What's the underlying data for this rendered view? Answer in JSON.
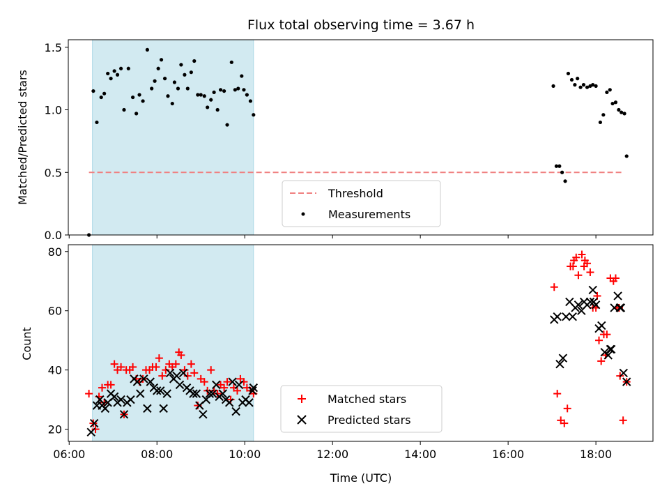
{
  "title": "Flux total observing time = 3.67 h",
  "colors": {
    "shade": "#add8e6",
    "threshold": "#f08080",
    "measurement": "#000000",
    "matched": "#ff0000",
    "predicted": "#000000"
  },
  "chart_data": [
    {
      "type": "scatter",
      "ylabel": "Matched/Predicted stars",
      "xlim": [
        5.98,
        19.3
      ],
      "ylim": [
        0.0,
        1.56
      ],
      "yticks": [
        0.0,
        0.5,
        1.0,
        1.5
      ],
      "ytick_labels": [
        "0.0",
        "0.5",
        "1.0",
        "1.5"
      ],
      "shaded_span": [
        6.53,
        10.2
      ],
      "legend": {
        "position": "lower-center",
        "entries": [
          "Threshold",
          "Measurements"
        ]
      },
      "threshold": {
        "name": "Threshold",
        "x": [
          6.45,
          18.6
        ],
        "y": 0.5
      },
      "series": [
        {
          "name": "Measurements",
          "x": [
            6.45,
            6.55,
            6.63,
            6.73,
            6.8,
            6.88,
            6.95,
            7.03,
            7.1,
            7.18,
            7.25,
            7.35,
            7.45,
            7.53,
            7.6,
            7.68,
            7.78,
            7.88,
            7.95,
            8.03,
            8.1,
            8.18,
            8.25,
            8.35,
            8.4,
            8.48,
            8.55,
            8.63,
            8.7,
            8.78,
            8.85,
            8.93,
            9.0,
            9.08,
            9.15,
            9.23,
            9.3,
            9.38,
            9.45,
            9.53,
            9.6,
            9.7,
            9.78,
            9.85,
            9.93,
            9.98,
            10.05,
            10.13,
            10.2,
            17.03,
            17.1,
            17.17,
            17.23,
            17.3,
            17.37,
            17.45,
            17.52,
            17.58,
            17.65,
            17.72,
            17.8,
            17.87,
            17.93,
            18.0,
            18.1,
            18.17,
            18.25,
            18.32,
            18.38,
            18.45,
            18.52,
            18.58,
            18.65,
            18.7
          ],
          "y": [
            0.0,
            1.15,
            0.9,
            1.1,
            1.13,
            1.29,
            1.25,
            1.31,
            1.28,
            1.33,
            1.0,
            1.33,
            1.1,
            0.97,
            1.12,
            1.07,
            1.48,
            1.17,
            1.23,
            1.33,
            1.4,
            1.25,
            1.11,
            1.05,
            1.22,
            1.17,
            1.36,
            1.28,
            1.17,
            1.3,
            1.39,
            1.12,
            1.12,
            1.11,
            1.02,
            1.08,
            1.14,
            1.0,
            1.16,
            1.15,
            0.88,
            1.38,
            1.16,
            1.17,
            1.27,
            1.16,
            1.12,
            1.07,
            0.96,
            1.19,
            0.55,
            0.55,
            0.5,
            0.43,
            1.29,
            1.24,
            1.2,
            1.25,
            1.18,
            1.2,
            1.18,
            1.19,
            1.2,
            1.19,
            0.9,
            0.96,
            1.14,
            1.16,
            1.05,
            1.06,
            1.0,
            0.98,
            0.97,
            0.63
          ]
        }
      ]
    },
    {
      "type": "scatter",
      "ylabel": "Count",
      "xlabel": "Time (UTC)",
      "xlim": [
        5.98,
        19.3
      ],
      "ylim": [
        15.9,
        82.3
      ],
      "yticks": [
        20,
        40,
        60,
        80
      ],
      "ytick_labels": [
        "20",
        "40",
        "60",
        "80"
      ],
      "xticks": [
        6,
        8,
        10,
        12,
        14,
        16,
        18
      ],
      "xtick_labels": [
        "06:00",
        "08:00",
        "10:00",
        "12:00",
        "14:00",
        "16:00",
        "18:00"
      ],
      "shaded_span": [
        6.53,
        10.2
      ],
      "legend": {
        "position": "lower-center",
        "entries": [
          "Matched stars",
          "Predicted stars"
        ]
      },
      "series": [
        {
          "name": "Matched stars",
          "marker": "plus",
          "x": [
            6.45,
            6.55,
            6.6,
            6.68,
            6.75,
            6.8,
            6.88,
            6.95,
            7.03,
            7.1,
            7.18,
            7.25,
            7.3,
            7.38,
            7.45,
            7.53,
            7.6,
            7.68,
            7.75,
            7.83,
            7.9,
            7.98,
            8.05,
            8.12,
            8.2,
            8.28,
            8.35,
            8.43,
            8.5,
            8.55,
            8.63,
            8.7,
            8.78,
            8.85,
            8.93,
            9.0,
            9.08,
            9.15,
            9.23,
            9.3,
            9.38,
            9.45,
            9.53,
            9.6,
            9.68,
            9.75,
            9.83,
            9.9,
            9.98,
            10.05,
            10.13,
            10.2,
            17.05,
            17.12,
            17.2,
            17.28,
            17.35,
            17.42,
            17.5,
            17.55,
            17.6,
            17.68,
            17.73,
            17.8,
            17.87,
            17.93,
            18.0,
            18.07,
            18.12,
            18.18,
            18.25,
            18.33,
            18.4,
            18.48,
            18.55,
            18.62,
            18.7
          ],
          "y": [
            32,
            22,
            20,
            31,
            34,
            29,
            35,
            35,
            42,
            40,
            41,
            25,
            40,
            40,
            41,
            37,
            36,
            37,
            40,
            40,
            41,
            41,
            44,
            38,
            40,
            42,
            41,
            42,
            46,
            45,
            40,
            38,
            42,
            39,
            28,
            37,
            36,
            33,
            40,
            33,
            32,
            35,
            34,
            36,
            30,
            34,
            33,
            37,
            36,
            34,
            33,
            32,
            68,
            32,
            23,
            22,
            27,
            75,
            77,
            78,
            72,
            79,
            75,
            76,
            73,
            61,
            61,
            50,
            43,
            52,
            52,
            71,
            70,
            61,
            38,
            23,
            36
          ],
          "extra": [
            [
              17.75,
              77
            ],
            [
              18.03,
              65
            ],
            [
              18.45,
              71
            ],
            [
              18.53,
              61
            ],
            [
              18.22,
              45
            ],
            [
              17.48,
              75
            ]
          ]
        },
        {
          "name": "Predicted stars",
          "marker": "x",
          "x": [
            6.5,
            6.57,
            6.63,
            6.7,
            6.75,
            6.82,
            6.88,
            6.95,
            7.03,
            7.1,
            7.18,
            7.25,
            7.32,
            7.4,
            7.48,
            7.55,
            7.62,
            7.7,
            7.78,
            7.85,
            7.93,
            8.0,
            8.08,
            8.15,
            8.23,
            8.3,
            8.38,
            8.45,
            8.52,
            8.6,
            8.68,
            8.75,
            8.83,
            8.9,
            8.97,
            9.05,
            9.12,
            9.2,
            9.27,
            9.35,
            9.42,
            9.5,
            9.57,
            9.65,
            9.72,
            9.8,
            9.87,
            9.95,
            10.02,
            10.1,
            10.18,
            17.05,
            17.12,
            17.18,
            17.25,
            17.32,
            17.4,
            17.47,
            17.53,
            17.6,
            17.67,
            17.73,
            17.8,
            17.87,
            17.93,
            18.0,
            18.07,
            18.13,
            18.2,
            18.28,
            18.35,
            18.42,
            18.5,
            18.57,
            18.63,
            18.7
          ],
          "y": [
            19,
            22,
            28,
            30,
            28,
            27,
            29,
            32,
            31,
            29,
            30,
            25,
            29,
            30,
            37,
            36,
            32,
            37,
            27,
            36,
            34,
            33,
            33,
            27,
            32,
            39,
            37,
            38,
            35,
            39,
            34,
            33,
            32,
            32,
            28,
            25,
            30,
            32,
            32,
            35,
            31,
            32,
            30,
            29,
            36,
            26,
            35,
            29,
            30,
            29,
            33,
            57,
            58,
            42,
            44,
            58,
            63,
            58,
            61,
            62,
            60,
            63,
            62,
            63,
            67,
            62,
            54,
            55,
            46,
            45,
            47,
            61,
            65,
            61,
            39,
            36
          ],
          "extra": [
            [
              10.2,
              34
            ],
            [
              18.55,
              61
            ],
            [
              18.33,
              47
            ],
            [
              17.95,
              63
            ]
          ]
        }
      ]
    }
  ]
}
